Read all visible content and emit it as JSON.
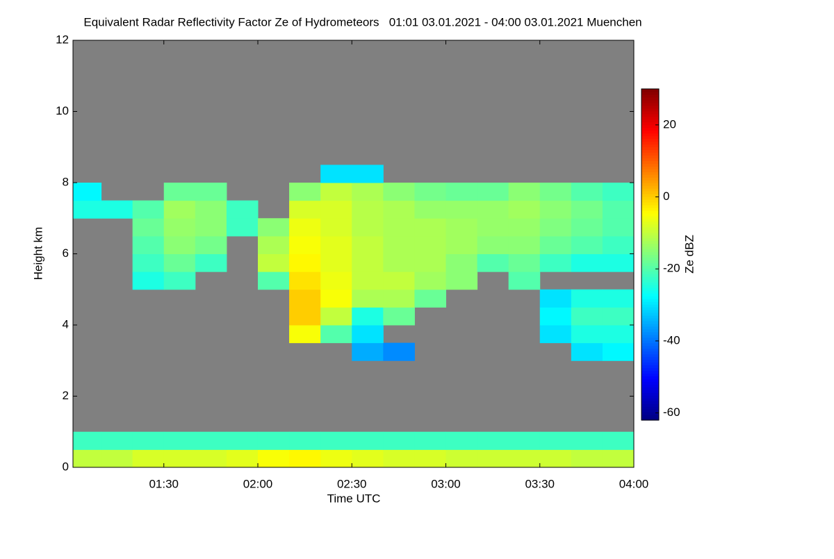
{
  "chart_data": {
    "type": "heatmap",
    "title": "Equivalent Radar Reflectivity Factor Ze of Hydrometeors   01:01 03.01.2021 - 04:00 03.01.2021 Muenchen",
    "xlabel": "Time UTC",
    "ylabel": "Height km",
    "colorbar_label": "Ze dBZ",
    "background": "#808080",
    "colormap": "jet",
    "xlim": [
      61,
      240
    ],
    "xticks": [
      {
        "value": 90,
        "label": "01:30"
      },
      {
        "value": 120,
        "label": "02:00"
      },
      {
        "value": 150,
        "label": "02:30"
      },
      {
        "value": 180,
        "label": "03:00"
      },
      {
        "value": 210,
        "label": "03:30"
      },
      {
        "value": 240,
        "label": "04:00"
      }
    ],
    "ylim": [
      0,
      12
    ],
    "yticks": [
      0,
      2,
      4,
      6,
      8,
      10,
      12
    ],
    "clim": [
      -62,
      30
    ],
    "cticks": [
      -60,
      -40,
      -20,
      0,
      20
    ],
    "x_bins": [
      61,
      70,
      80,
      90,
      100,
      110,
      120,
      130,
      140,
      150,
      160,
      170,
      180,
      190,
      200,
      210,
      220,
      230,
      240
    ],
    "y_bins": [
      0,
      0.5,
      1,
      1.5,
      2,
      2.5,
      3,
      3.5,
      4,
      4.5,
      5,
      5.5,
      6,
      6.5,
      7,
      7.5,
      8,
      8.5
    ],
    "z": [
      [
        -10,
        -10,
        -8,
        -8,
        -8,
        -7,
        -5,
        -4,
        -6,
        -7,
        -8,
        -8,
        -9,
        -9,
        -9,
        -9,
        -10,
        -10
      ],
      [
        -22,
        -22,
        -22,
        -22,
        -22,
        -22,
        -22,
        -22,
        -22,
        -22,
        -22,
        -22,
        -22,
        -22,
        -22,
        -22,
        -22,
        -22
      ],
      [
        null,
        null,
        null,
        null,
        null,
        null,
        null,
        null,
        null,
        null,
        null,
        null,
        null,
        null,
        null,
        null,
        null,
        null
      ],
      [
        null,
        null,
        null,
        null,
        null,
        null,
        null,
        null,
        null,
        null,
        null,
        null,
        null,
        null,
        null,
        null,
        null,
        null
      ],
      [
        null,
        null,
        null,
        null,
        null,
        null,
        null,
        null,
        null,
        null,
        null,
        null,
        null,
        null,
        null,
        null,
        null,
        null
      ],
      [
        null,
        null,
        null,
        null,
        null,
        null,
        null,
        null,
        null,
        null,
        null,
        null,
        null,
        null,
        null,
        null,
        null,
        null
      ],
      [
        null,
        null,
        null,
        null,
        null,
        null,
        null,
        null,
        null,
        -35,
        -38,
        null,
        null,
        null,
        null,
        null,
        -30,
        -28
      ],
      [
        null,
        null,
        null,
        null,
        null,
        null,
        null,
        -5,
        -20,
        -30,
        null,
        null,
        null,
        null,
        null,
        -30,
        -25,
        -25
      ],
      [
        null,
        null,
        null,
        null,
        null,
        null,
        null,
        0,
        -10,
        -25,
        -18,
        null,
        null,
        null,
        null,
        -28,
        -22,
        -22
      ],
      [
        null,
        null,
        null,
        null,
        null,
        null,
        null,
        0,
        -5,
        -12,
        -12,
        -18,
        null,
        null,
        null,
        -30,
        -25,
        -25
      ],
      [
        null,
        null,
        -25,
        -22,
        null,
        null,
        -20,
        -2,
        -6,
        -10,
        -10,
        -13,
        -15,
        null,
        -20,
        null,
        null,
        null
      ],
      [
        null,
        null,
        -22,
        -18,
        -22,
        null,
        -10,
        -4,
        -7,
        -10,
        -12,
        -12,
        -15,
        -20,
        -18,
        -22,
        -25,
        -25
      ],
      [
        null,
        null,
        -20,
        -15,
        -17,
        null,
        -12,
        -5,
        -7,
        -10,
        -12,
        -12,
        -13,
        -15,
        -15,
        -18,
        -20,
        -22
      ],
      [
        null,
        null,
        -18,
        -14,
        -15,
        -22,
        -15,
        -6,
        -8,
        -11,
        -12,
        -12,
        -13,
        -14,
        -14,
        -16,
        -18,
        -20
      ],
      [
        -25,
        -25,
        -20,
        -13,
        -15,
        -22,
        null,
        -8,
        -8,
        -11,
        -12,
        -14,
        -14,
        -14,
        -13,
        -15,
        -17,
        -20
      ],
      [
        -28,
        null,
        null,
        -18,
        -18,
        null,
        null,
        -15,
        -10,
        -12,
        -15,
        -17,
        -18,
        -18,
        -15,
        -17,
        -20,
        -22
      ],
      [
        null,
        null,
        null,
        null,
        null,
        null,
        null,
        null,
        -30,
        -30,
        null,
        null,
        null,
        null,
        null,
        null,
        null,
        null
      ]
    ]
  }
}
